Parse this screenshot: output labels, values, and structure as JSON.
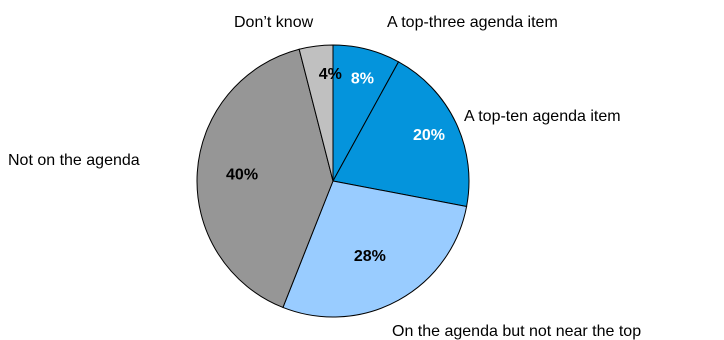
{
  "chart_data": {
    "type": "pie",
    "title": "",
    "categories": [
      "A top-three agenda item",
      "A top-ten agenda item",
      "On the agenda but not near the top",
      "Not on the agenda",
      "Don’t know"
    ],
    "values": [
      8,
      20,
      28,
      40,
      4
    ],
    "value_labels": [
      "8%",
      "20%",
      "28%",
      "40%",
      "4%"
    ],
    "colors": [
      "#0494dc",
      "#0494dc",
      "#99ccff",
      "#969696",
      "#c0c0c0"
    ],
    "label_colors": [
      "#ffffff",
      "#ffffff",
      "#000000",
      "#000000",
      "#000000"
    ],
    "start": "12 o'clock",
    "direction": "clockwise"
  }
}
